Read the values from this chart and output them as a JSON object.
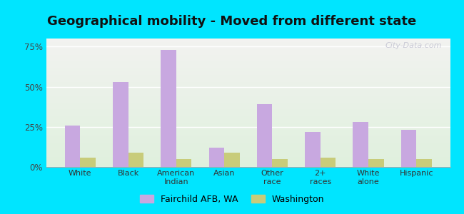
{
  "title": "Geographical mobility - Moved from different state",
  "categories": [
    "White",
    "Black",
    "American\nIndian",
    "Asian",
    "Other\nrace",
    "2+\nraces",
    "White\nalone",
    "Hispanic"
  ],
  "fairchild_values": [
    26,
    53,
    73,
    12,
    39,
    22,
    28,
    23
  ],
  "washington_values": [
    6,
    9,
    5,
    9,
    5,
    6,
    5,
    5
  ],
  "fairchild_color": "#c8a8e0",
  "washington_color": "#c8cc7a",
  "ylim": [
    0,
    80
  ],
  "yticks": [
    0,
    25,
    50,
    75
  ],
  "ytick_labels": [
    "0%",
    "25%",
    "50%",
    "75%"
  ],
  "figure_bg": "#00e5ff",
  "plot_bg_top": "#f2f2f0",
  "plot_bg_bottom": "#dff0dd",
  "legend_fairchild": "Fairchild AFB, WA",
  "legend_washington": "Washington",
  "bar_width": 0.32,
  "title_fontsize": 13,
  "watermark": "City-Data.com"
}
